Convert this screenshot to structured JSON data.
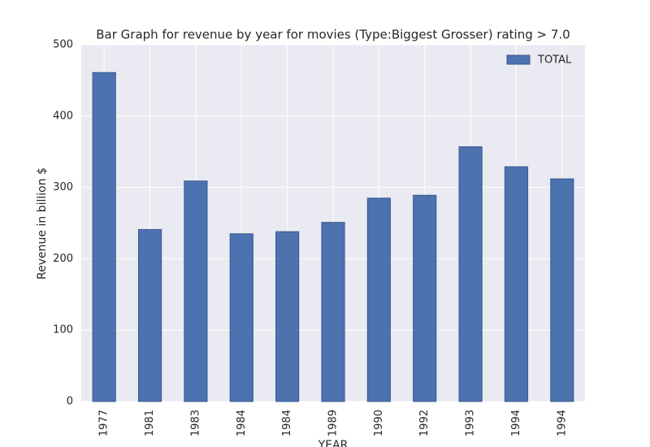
{
  "chart_data": {
    "type": "bar",
    "title": "Bar Graph for revenue by year for movies (Type:Biggest Grosser) rating > 7.0",
    "x_label": "YEAR",
    "y_label": "Revenue in billion $",
    "categories": [
      "1977",
      "1981",
      "1983",
      "1984",
      "1984",
      "1989",
      "1990",
      "1992",
      "1993",
      "1994",
      "1994"
    ],
    "series": [
      {
        "name": "TOTAL",
        "color": "#4c72b0",
        "values": [
          461,
          241,
          309,
          235,
          238,
          251,
          285,
          289,
          357,
          329,
          312
        ]
      }
    ],
    "ylim": [
      0,
      500
    ],
    "yticks": [
      0,
      100,
      200,
      300,
      400,
      500
    ],
    "grid": true,
    "legend": "upper right"
  }
}
